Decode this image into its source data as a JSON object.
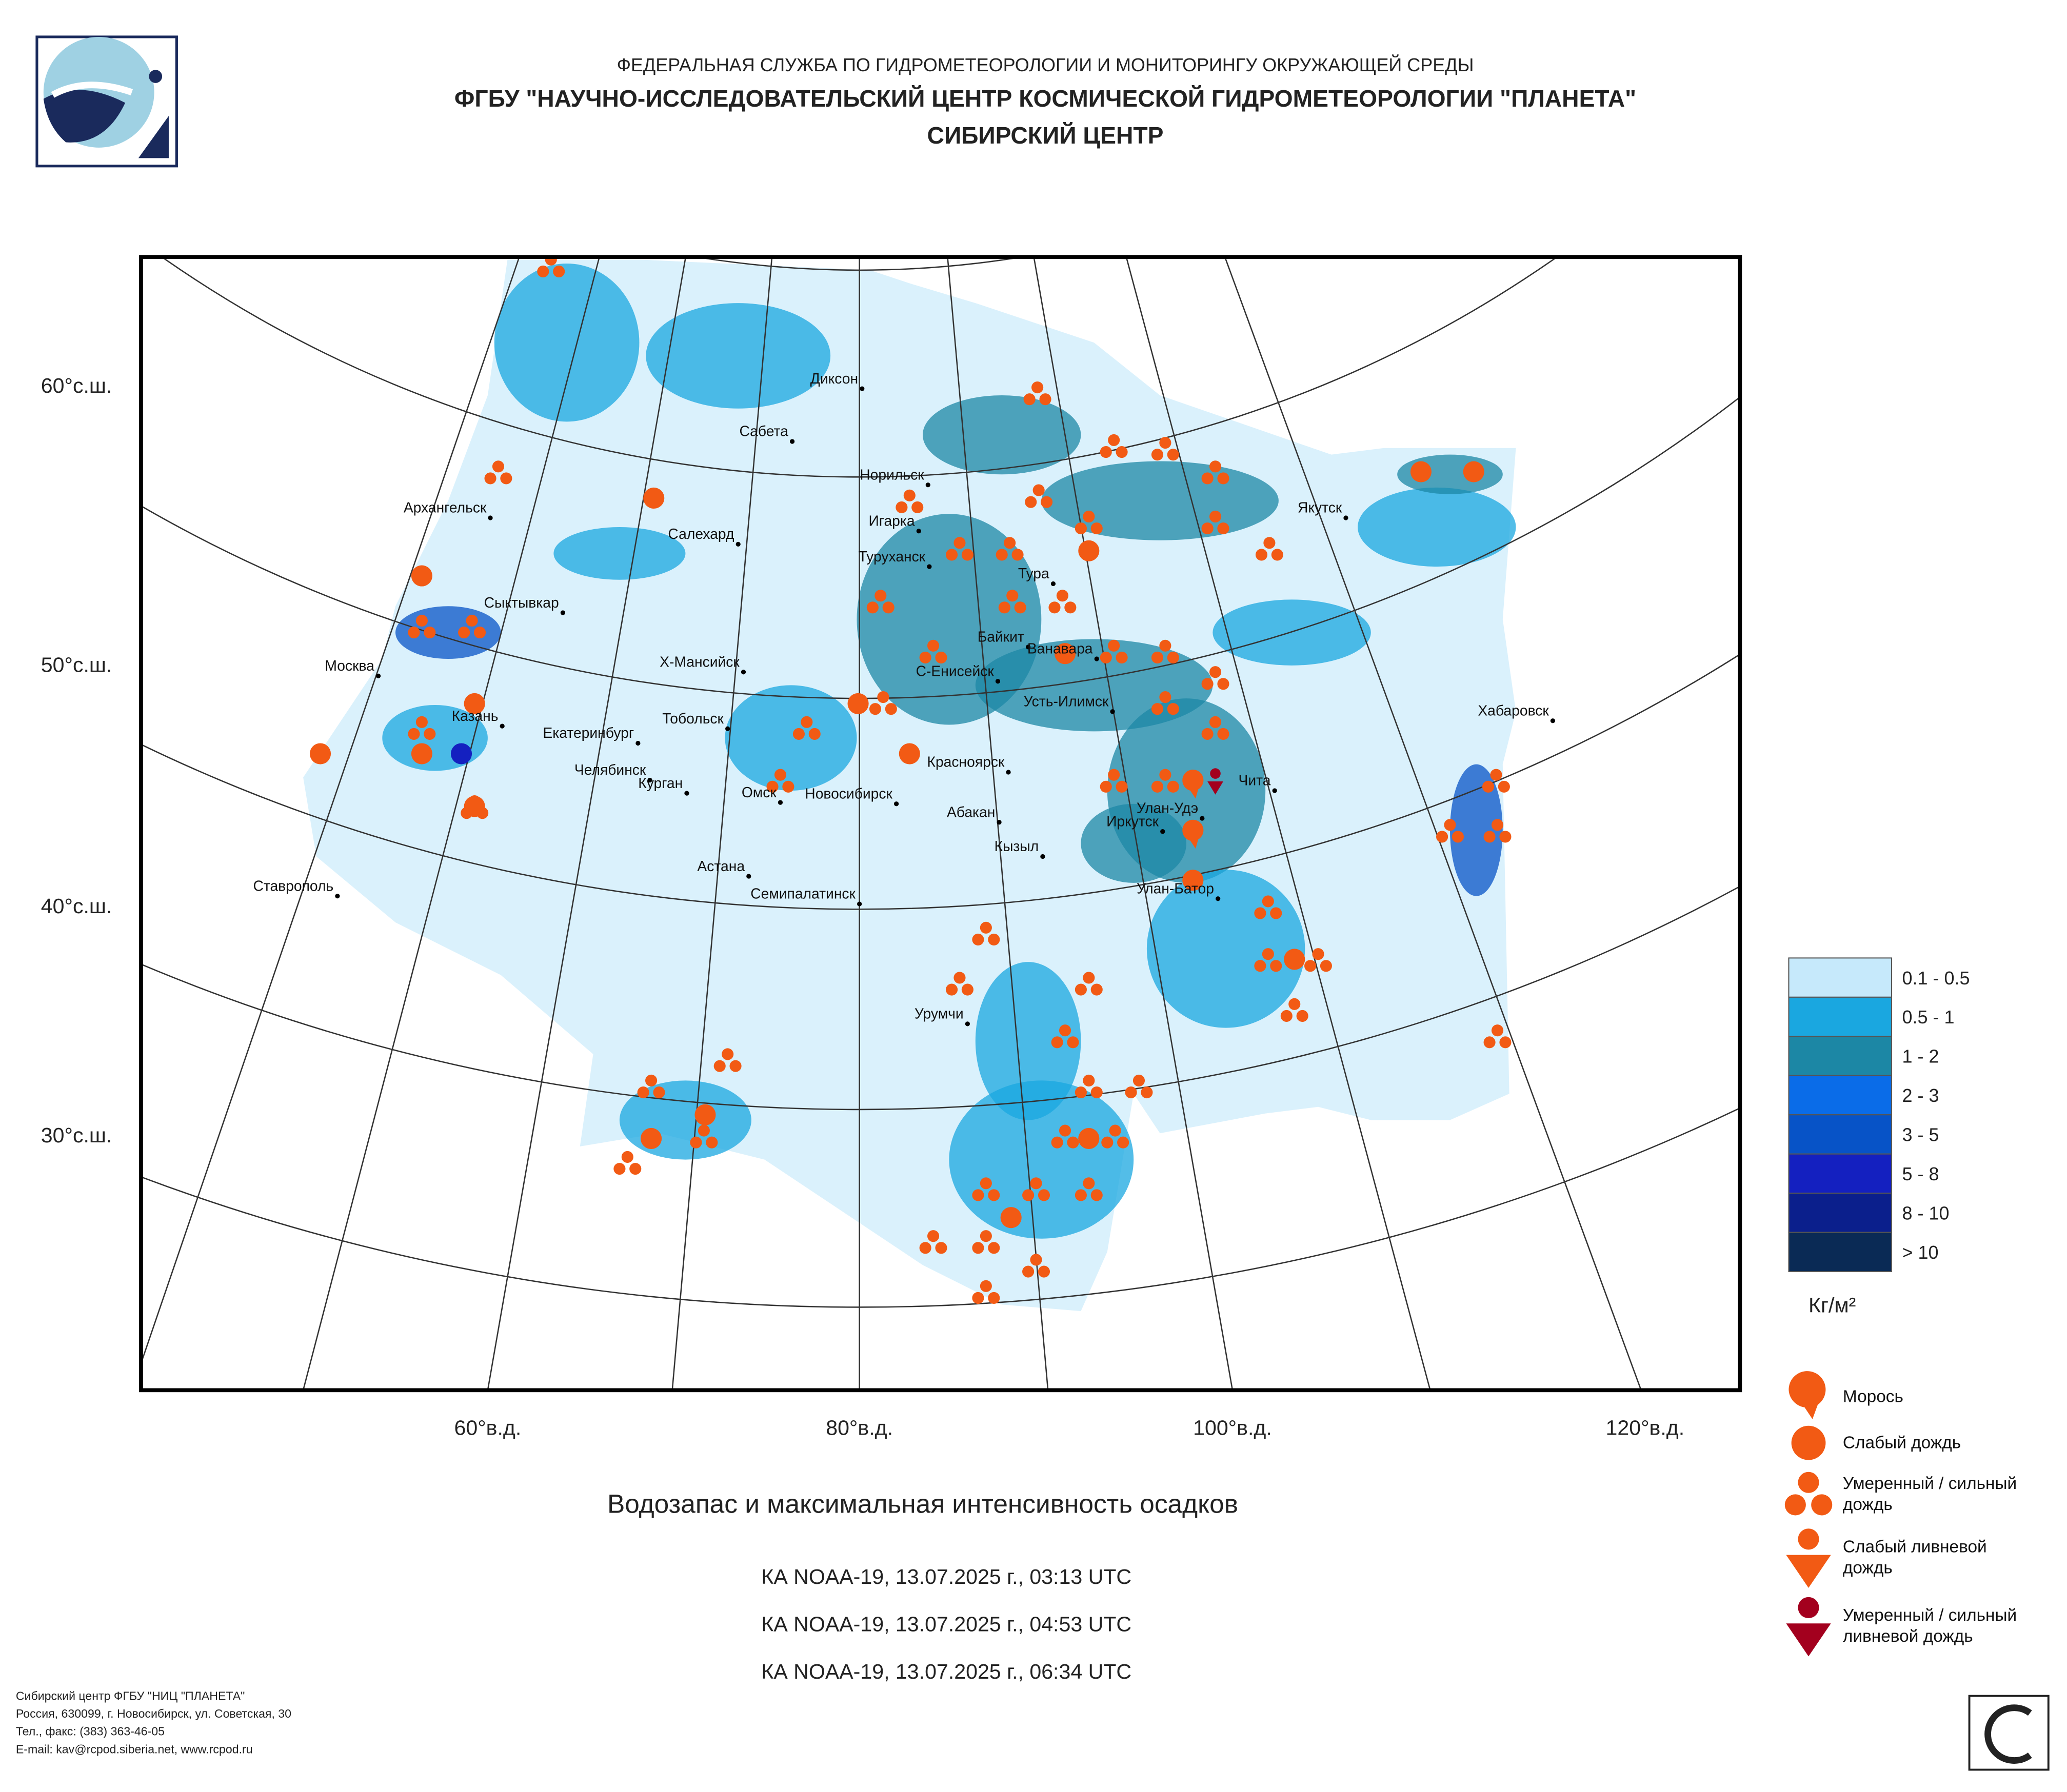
{
  "header": {
    "agency": "ФЕДЕРАЛЬНАЯ СЛУЖБА ПО ГИДРОМЕТЕОРОЛОГИИ И МОНИТОРИНГУ ОКРУЖАЮЩЕЙ СРЕДЫ",
    "institute": "ФГБУ \"НАУЧНО-ИССЛЕДОВАТЕЛЬСКИЙ ЦЕНТР КОСМИЧЕСКОЙ ГИДРОМЕТЕОРОЛОГИИ \"ПЛАНЕТА\"",
    "center": "СИБИРСКИЙ ЦЕНТР"
  },
  "map": {
    "lat_labels": [
      "60°с.ш.",
      "50°с.ш.",
      "40°с.ш.",
      "30°с.ш."
    ],
    "lon_labels": [
      "60°в.д.",
      "80°в.д.",
      "100°в.д.",
      "120°в.д."
    ],
    "cities": [
      "Диксон",
      "Сабета",
      "Норильск",
      "Архангельск",
      "Игарка",
      "Салехард",
      "Якутск",
      "Туруханск",
      "Тура",
      "Сыктывкар",
      "Байкит",
      "Ванавара",
      "Х-Мансийск",
      "С-Енисейск",
      "Москва",
      "Усть-Илимск",
      "Хабаровск",
      "Казань",
      "Тобольск",
      "Екатеринбург",
      "Красноярск",
      "Челябинск",
      "Чита",
      "Курган",
      "Омск",
      "Новосибирск",
      "Улан-Удэ",
      "Абакан",
      "Иркутск",
      "Кызыл",
      "Астана",
      "Ставрополь",
      "Семипалатинск",
      "Улан-Батор",
      "Урумчи"
    ]
  },
  "legend": {
    "water_content": [
      "0.1 - 0.5",
      "0.5 - 1",
      "1 - 2",
      "2 - 3",
      "3 - 5",
      "5 - 8",
      "8 - 10",
      "> 10"
    ],
    "unit": "Кг/м²",
    "symbols": [
      "Морось",
      "Слабый дождь",
      "Умеренный / сильный дождь",
      "Слабый ливневой дождь",
      "Умеренный / сильный ливневой дождь"
    ]
  },
  "title": "Водозапас и максимальная интенсивность осадков",
  "passes": [
    "КА NOAA-19, 13.07.2025 г., 03:13 UTC",
    "КА NOAA-19, 13.07.2025 г., 04:53 UTC",
    "КА NOAA-19, 13.07.2025 г., 06:34 UTC"
  ],
  "footer": [
    "Сибирский центр ФГБУ \"НИЦ \"ПЛАНЕТА\"",
    "Россия, 630099, г. Новосибирск, ул. Советская, 30",
    "Тел., факс: (383) 363-46-05",
    "E-mail: kav@rcpod.siberia.net, www.rcpod.ru"
  ]
}
